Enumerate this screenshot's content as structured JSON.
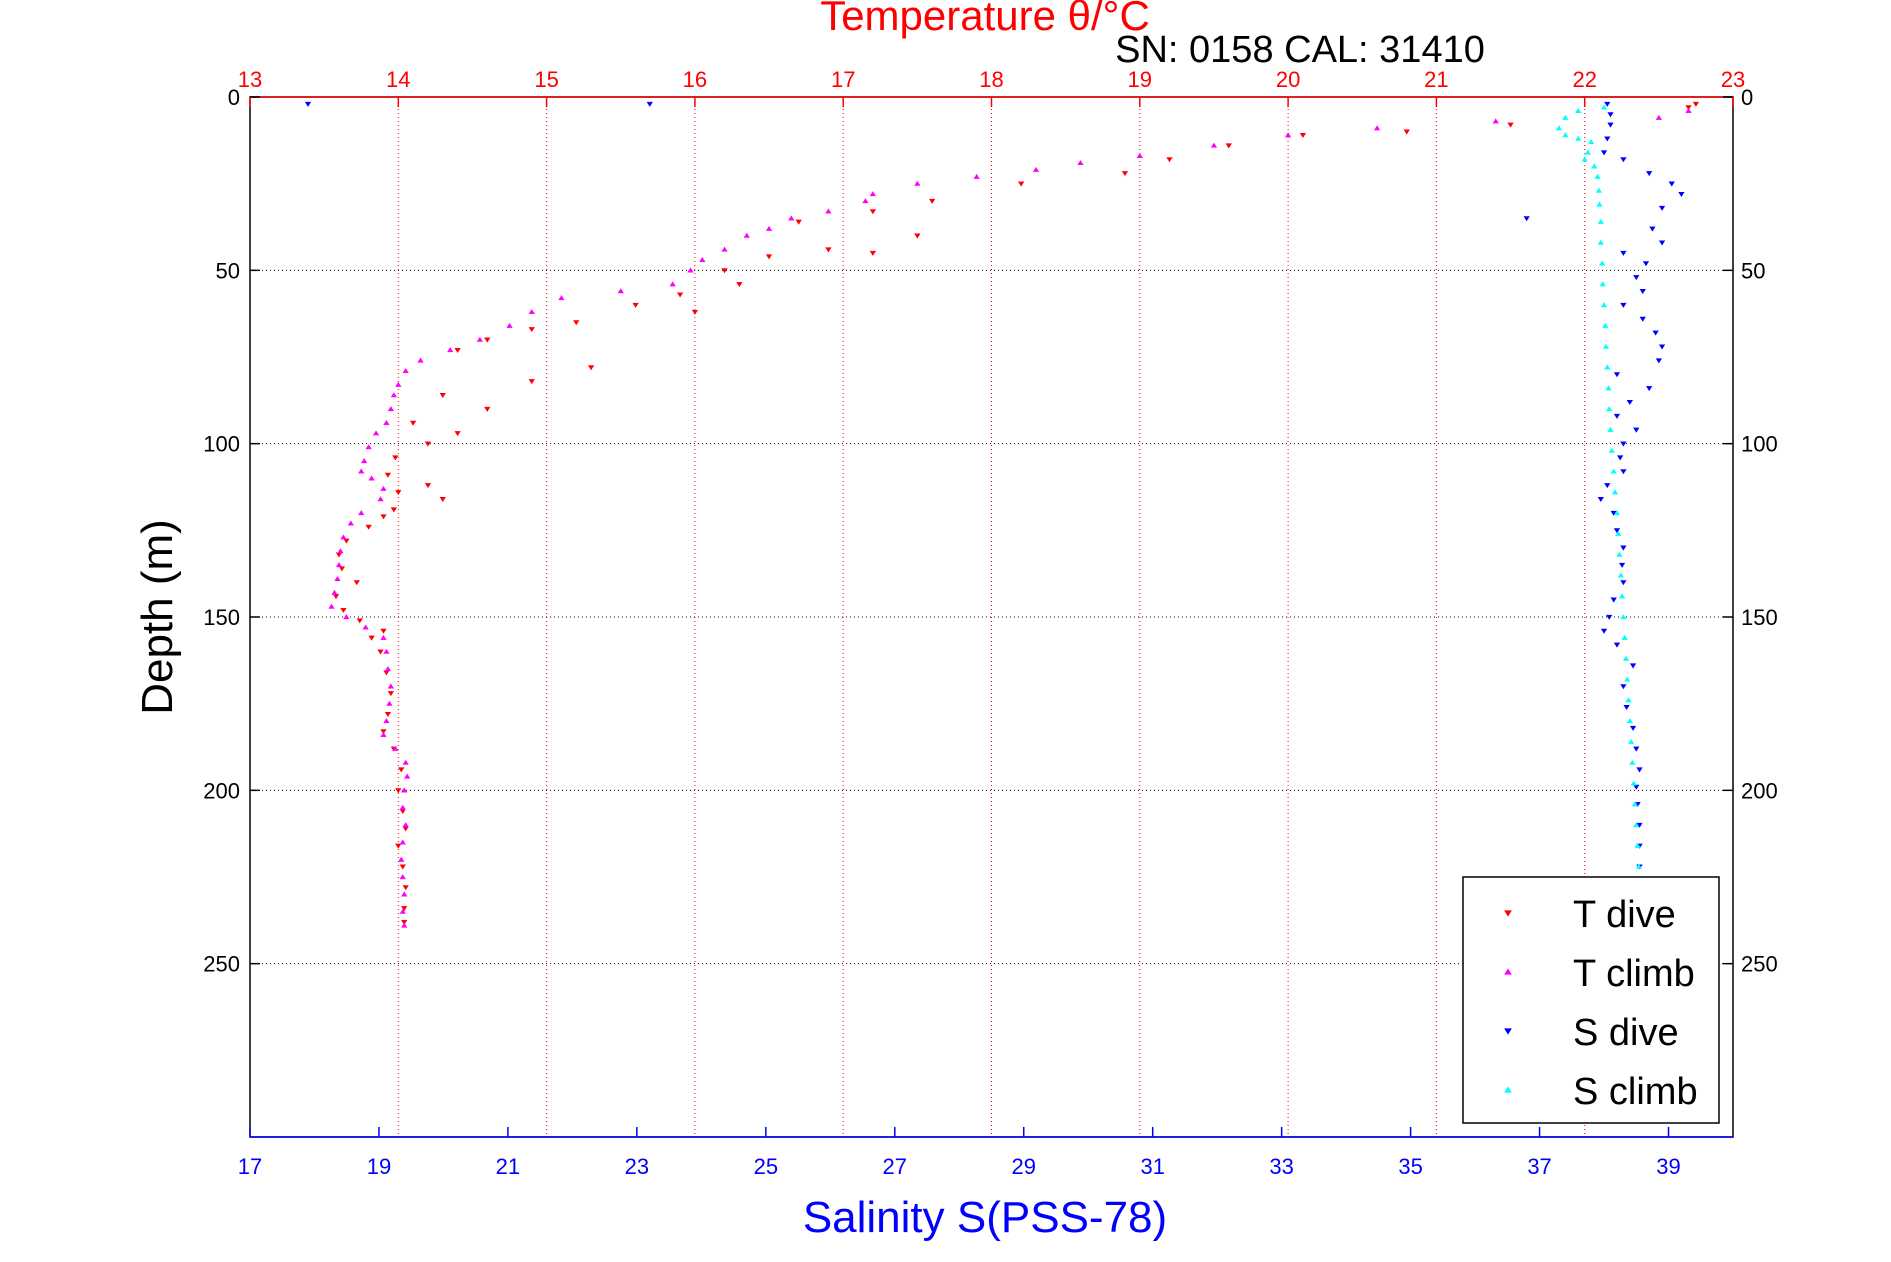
{
  "chart_data": {
    "type": "scatter",
    "title": "Temperature θ/°C",
    "subtitle": "SN: 0158  CAL: 31410",
    "ylabel": "Depth (m)",
    "xlabel_bottom": "Salinity S(PSS-78)",
    "xlabel_top": "Temperature θ/°C",
    "y_axis": {
      "range": [
        0,
        300
      ],
      "reversed": true,
      "ticks": [
        0,
        50,
        100,
        150,
        200,
        250
      ]
    },
    "x_axis_bottom": {
      "range": [
        17,
        40
      ],
      "ticks": [
        17,
        19,
        21,
        23,
        25,
        27,
        29,
        31,
        33,
        35,
        37,
        39
      ]
    },
    "x_axis_top": {
      "range": [
        13,
        23
      ],
      "ticks": [
        13,
        14,
        15,
        16,
        17,
        18,
        19,
        20,
        21,
        22,
        23
      ]
    },
    "grid": true,
    "legend_position": "bottom-right",
    "colors": {
      "temperature": "#ff0000",
      "salinity": "#0000ff",
      "axis": "#000000",
      "grid_temp": "#ff0000",
      "grid_depth": "#000000",
      "t_dive": "#ff0000",
      "t_climb": "#ff00ff",
      "s_dive": "#0000ff",
      "s_climb": "#00ffff"
    },
    "series": [
      {
        "name": "T dive",
        "axis": "temperature",
        "marker": "triangle-down",
        "color": "#ff0000",
        "points": [
          [
            22.75,
            2
          ],
          [
            22.7,
            3
          ],
          [
            21.5,
            8
          ],
          [
            20.8,
            10
          ],
          [
            20.1,
            11
          ],
          [
            19.6,
            14
          ],
          [
            19.2,
            18
          ],
          [
            18.9,
            22
          ],
          [
            18.2,
            25
          ],
          [
            17.6,
            30
          ],
          [
            17.2,
            33
          ],
          [
            16.7,
            36
          ],
          [
            17.5,
            40
          ],
          [
            16.9,
            44
          ],
          [
            16.5,
            46
          ],
          [
            17.2,
            45
          ],
          [
            16.2,
            50
          ],
          [
            16.3,
            54
          ],
          [
            15.9,
            57
          ],
          [
            15.6,
            60
          ],
          [
            16.0,
            62
          ],
          [
            15.2,
            65
          ],
          [
            14.9,
            67
          ],
          [
            14.6,
            70
          ],
          [
            14.4,
            73
          ],
          [
            15.3,
            78
          ],
          [
            14.9,
            82
          ],
          [
            14.3,
            86
          ],
          [
            14.6,
            90
          ],
          [
            14.1,
            94
          ],
          [
            14.4,
            97
          ],
          [
            14.2,
            100
          ],
          [
            13.98,
            104
          ],
          [
            13.93,
            109
          ],
          [
            14.2,
            112
          ],
          [
            14.0,
            114
          ],
          [
            14.3,
            116
          ],
          [
            13.97,
            119
          ],
          [
            13.9,
            121
          ],
          [
            13.8,
            124
          ],
          [
            13.65,
            128
          ],
          [
            13.6,
            132
          ],
          [
            13.62,
            136
          ],
          [
            13.72,
            140
          ],
          [
            13.58,
            144
          ],
          [
            13.63,
            148
          ],
          [
            13.74,
            151
          ],
          [
            13.9,
            154
          ],
          [
            13.82,
            156
          ],
          [
            13.88,
            160
          ],
          [
            13.92,
            166
          ],
          [
            13.95,
            172
          ],
          [
            13.93,
            178
          ],
          [
            13.9,
            183
          ],
          [
            13.97,
            188
          ],
          [
            14.02,
            194
          ],
          [
            14.0,
            200
          ],
          [
            14.03,
            206
          ],
          [
            14.05,
            211
          ],
          [
            14.0,
            216
          ],
          [
            14.03,
            222
          ],
          [
            14.05,
            228
          ],
          [
            14.04,
            234
          ],
          [
            14.04,
            238
          ]
        ]
      },
      {
        "name": "T climb",
        "axis": "temperature",
        "marker": "triangle-up",
        "color": "#ff00ff",
        "points": [
          [
            22.7,
            4
          ],
          [
            22.5,
            6
          ],
          [
            21.4,
            7
          ],
          [
            20.6,
            9
          ],
          [
            20.0,
            11
          ],
          [
            19.5,
            14
          ],
          [
            19.0,
            17
          ],
          [
            18.6,
            19
          ],
          [
            18.3,
            21
          ],
          [
            17.9,
            23
          ],
          [
            17.5,
            25
          ],
          [
            17.2,
            28
          ],
          [
            17.15,
            30
          ],
          [
            16.9,
            33
          ],
          [
            16.65,
            35
          ],
          [
            16.5,
            38
          ],
          [
            16.35,
            40
          ],
          [
            16.2,
            44
          ],
          [
            16.05,
            47
          ],
          [
            15.97,
            50
          ],
          [
            15.85,
            54
          ],
          [
            15.5,
            56
          ],
          [
            15.1,
            58
          ],
          [
            14.9,
            62
          ],
          [
            14.75,
            66
          ],
          [
            14.55,
            70
          ],
          [
            14.35,
            73
          ],
          [
            14.15,
            76
          ],
          [
            14.05,
            79
          ],
          [
            14.0,
            83
          ],
          [
            13.97,
            86
          ],
          [
            13.95,
            90
          ],
          [
            13.92,
            94
          ],
          [
            13.85,
            97
          ],
          [
            13.8,
            101
          ],
          [
            13.77,
            105
          ],
          [
            13.75,
            108
          ],
          [
            13.82,
            110
          ],
          [
            13.9,
            113
          ],
          [
            13.88,
            116
          ],
          [
            13.75,
            120
          ],
          [
            13.68,
            123
          ],
          [
            13.63,
            127
          ],
          [
            13.61,
            131
          ],
          [
            13.6,
            135
          ],
          [
            13.59,
            139
          ],
          [
            13.57,
            143
          ],
          [
            13.55,
            147
          ],
          [
            13.65,
            150
          ],
          [
            13.78,
            153
          ],
          [
            13.9,
            156
          ],
          [
            13.92,
            160
          ],
          [
            13.93,
            165
          ],
          [
            13.95,
            170
          ],
          [
            13.94,
            175
          ],
          [
            13.92,
            180
          ],
          [
            13.9,
            184
          ],
          [
            13.98,
            188
          ],
          [
            14.05,
            192
          ],
          [
            14.06,
            196
          ],
          [
            14.04,
            200
          ],
          [
            14.03,
            205
          ],
          [
            14.05,
            210
          ],
          [
            14.03,
            215
          ],
          [
            14.02,
            220
          ],
          [
            14.03,
            225
          ],
          [
            14.04,
            230
          ],
          [
            14.03,
            235
          ],
          [
            14.04,
            239
          ]
        ]
      },
      {
        "name": "S dive",
        "axis": "salinity",
        "marker": "triangle-down",
        "color": "#0000ff",
        "points": [
          [
            17.9,
            2
          ],
          [
            23.2,
            2
          ],
          [
            38.05,
            2
          ],
          [
            38.1,
            5
          ],
          [
            38.1,
            8
          ],
          [
            38.05,
            12
          ],
          [
            38.0,
            16
          ],
          [
            38.3,
            18
          ],
          [
            38.7,
            22
          ],
          [
            39.05,
            25
          ],
          [
            39.2,
            28
          ],
          [
            38.9,
            32
          ],
          [
            36.8,
            35
          ],
          [
            38.75,
            38
          ],
          [
            38.9,
            42
          ],
          [
            38.3,
            45
          ],
          [
            38.65,
            48
          ],
          [
            38.5,
            52
          ],
          [
            38.6,
            56
          ],
          [
            38.3,
            60
          ],
          [
            38.6,
            64
          ],
          [
            38.8,
            68
          ],
          [
            38.9,
            72
          ],
          [
            38.85,
            76
          ],
          [
            38.2,
            80
          ],
          [
            38.7,
            84
          ],
          [
            38.4,
            88
          ],
          [
            38.2,
            92
          ],
          [
            38.5,
            96
          ],
          [
            38.3,
            100
          ],
          [
            38.25,
            104
          ],
          [
            38.3,
            108
          ],
          [
            38.05,
            112
          ],
          [
            37.95,
            116
          ],
          [
            38.15,
            120
          ],
          [
            38.2,
            125
          ],
          [
            38.3,
            130
          ],
          [
            38.28,
            135
          ],
          [
            38.3,
            140
          ],
          [
            38.15,
            145
          ],
          [
            38.08,
            150
          ],
          [
            38.0,
            154
          ],
          [
            38.2,
            158
          ],
          [
            38.45,
            164
          ],
          [
            38.3,
            170
          ],
          [
            38.35,
            176
          ],
          [
            38.45,
            182
          ],
          [
            38.5,
            188
          ],
          [
            38.55,
            194
          ],
          [
            38.5,
            199
          ],
          [
            38.52,
            204
          ],
          [
            38.55,
            210
          ],
          [
            38.55,
            216
          ],
          [
            38.55,
            222
          ],
          [
            38.56,
            226
          ]
        ]
      },
      {
        "name": "S climb",
        "axis": "salinity",
        "marker": "triangle-up",
        "color": "#00ffff",
        "points": [
          [
            38.0,
            3
          ],
          [
            37.6,
            4
          ],
          [
            37.4,
            6
          ],
          [
            37.3,
            9
          ],
          [
            37.4,
            11
          ],
          [
            37.6,
            12
          ],
          [
            37.8,
            13
          ],
          [
            37.75,
            16
          ],
          [
            37.7,
            18
          ],
          [
            37.85,
            20
          ],
          [
            37.9,
            23
          ],
          [
            37.92,
            27
          ],
          [
            37.93,
            31
          ],
          [
            37.95,
            36
          ],
          [
            37.95,
            42
          ],
          [
            37.97,
            48
          ],
          [
            37.98,
            54
          ],
          [
            38.0,
            60
          ],
          [
            38.02,
            66
          ],
          [
            38.03,
            72
          ],
          [
            38.05,
            78
          ],
          [
            38.07,
            84
          ],
          [
            38.08,
            90
          ],
          [
            38.1,
            96
          ],
          [
            38.12,
            102
          ],
          [
            38.15,
            108
          ],
          [
            38.17,
            114
          ],
          [
            38.2,
            120
          ],
          [
            38.22,
            126
          ],
          [
            38.24,
            132
          ],
          [
            38.26,
            138
          ],
          [
            38.28,
            144
          ],
          [
            38.3,
            150
          ],
          [
            38.32,
            156
          ],
          [
            38.34,
            162
          ],
          [
            38.36,
            168
          ],
          [
            38.38,
            174
          ],
          [
            38.4,
            180
          ],
          [
            38.42,
            186
          ],
          [
            38.44,
            192
          ],
          [
            38.46,
            198
          ],
          [
            38.48,
            204
          ],
          [
            38.5,
            210
          ],
          [
            38.52,
            216
          ],
          [
            38.54,
            222
          ],
          [
            38.55,
            226
          ]
        ]
      }
    ],
    "legend": [
      "T dive",
      "T climb",
      "S dive",
      "S climb"
    ]
  }
}
